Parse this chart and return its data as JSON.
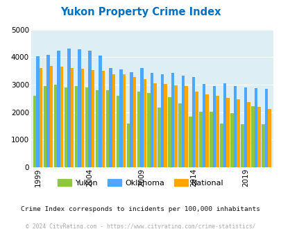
{
  "title": "Yukon Property Crime Index",
  "years": [
    1999,
    2000,
    2001,
    2002,
    2003,
    2004,
    2005,
    2006,
    2007,
    2008,
    2009,
    2010,
    2011,
    2012,
    2013,
    2014,
    2015,
    2016,
    2017,
    2018,
    2019,
    2020,
    2021
  ],
  "yukon": [
    2600,
    2950,
    3000,
    2900,
    2950,
    2900,
    2800,
    2800,
    2600,
    1600,
    2750,
    2700,
    2175,
    2550,
    2310,
    1850,
    2030,
    2010,
    1600,
    1960,
    1570,
    2230,
    1560
  ],
  "oklahoma": [
    4050,
    4100,
    4230,
    4320,
    4300,
    4240,
    4060,
    3600,
    3550,
    3450,
    3600,
    3430,
    3380,
    3430,
    3340,
    3280,
    3020,
    2940,
    3050,
    2940,
    2900,
    2880,
    2840
  ],
  "national": [
    3600,
    3680,
    3660,
    3600,
    3580,
    3530,
    3500,
    3370,
    3370,
    3270,
    3200,
    3050,
    3020,
    2980,
    2960,
    2750,
    2640,
    2610,
    2520,
    2460,
    2370,
    2200,
    2130
  ],
  "bar_colors": {
    "yukon": "#8dc63f",
    "oklahoma": "#4da6ff",
    "national": "#ffa500"
  },
  "ylim": [
    0,
    5000
  ],
  "yticks": [
    0,
    1000,
    2000,
    3000,
    4000,
    5000
  ],
  "xlabel_years": [
    1999,
    2004,
    2009,
    2014,
    2019
  ],
  "bg_color": "#ddeef4",
  "fig_bg": "#ffffff",
  "subtitle": "Crime Index corresponds to incidents per 100,000 inhabitants",
  "footer": "© 2024 CityRating.com - https://www.cityrating.com/crime-statistics/",
  "legend_labels": [
    "Yukon",
    "Oklahoma",
    "National"
  ],
  "title_color": "#0070c0",
  "subtitle_color": "#111111",
  "footer_color": "#aaaaaa"
}
